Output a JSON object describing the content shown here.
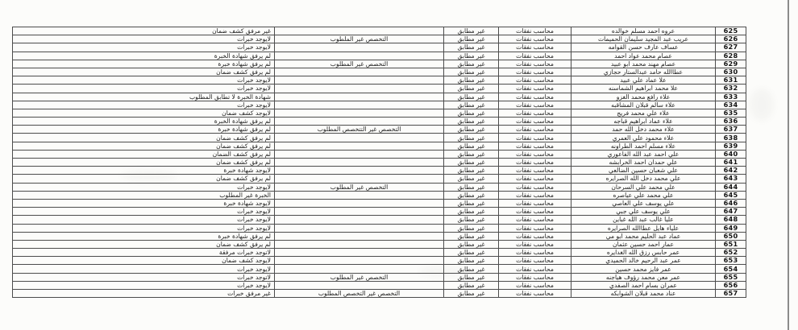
{
  "table": {
    "job_label": "محاسب نفقات",
    "match_label": "غير مطابق",
    "rows": [
      {
        "id": "625",
        "name": "عروه احمد مسلم خوالده",
        "job": "محاسب نفقات",
        "match": "غير مطابق",
        "spec": "",
        "reason": "غير مرفق كشف ضمان"
      },
      {
        "id": "626",
        "name": "عريب عبد المجيد سليمان الحميمات",
        "job": "محاسب نفقات",
        "match": "غير مطابق",
        "spec": "التخصص غير الملطوب",
        "reason": "لايوجد خبرات"
      },
      {
        "id": "627",
        "name": "عساف عارف حسن القوامه",
        "job": "محاسب نفقات",
        "match": "غير مطابق",
        "spec": "",
        "reason": "لايوجد خبرات"
      },
      {
        "id": "628",
        "name": "عصام محمد عواد احمد",
        "job": "محاسب نفقات",
        "match": "غير مطابق",
        "spec": "",
        "reason": "لم يرفق شهادة الخبرة"
      },
      {
        "id": "629",
        "name": "عصام مهند محمد ابو عبيد",
        "job": "محاسب نفقات",
        "match": "غير مطابق",
        "spec": "التخصص غير المطلوب",
        "reason": "لم يرفق شهادة خبرة"
      },
      {
        "id": "630",
        "name": "عطاالله حامد عبدالستار حجازي",
        "job": "محاسب نفقات",
        "match": "غير مطابق",
        "spec": "",
        "reason": "لم يرفق كشف ضمان"
      },
      {
        "id": "631",
        "name": "علا عماد علي عبيد",
        "job": "محاسب نفقات",
        "match": "غير مطابق",
        "spec": "",
        "reason": "لايوجد خبرات"
      },
      {
        "id": "632",
        "name": "علا محمد ابراهيم الشماسنه",
        "job": "محاسب نفقات",
        "match": "غير مطابق",
        "spec": "",
        "reason": "لايوجد خبرات"
      },
      {
        "id": "633",
        "name": "علاء رافع محمد الغزو",
        "job": "محاسب نفقات",
        "match": "غير مطابق",
        "spec": "",
        "reason": "شهادة الخبرة لا تطابق المطلوب"
      },
      {
        "id": "634",
        "name": "علاء سالم قبلان المشاقبه",
        "job": "محاسب نفقات",
        "match": "غير مطابق",
        "spec": "",
        "reason": "لايوجد خبرات"
      },
      {
        "id": "635",
        "name": "علاء علي محمد فريج",
        "job": "محاسب نفقات",
        "match": "غير مطابق",
        "spec": "",
        "reason": "لايوجد كشف ضمان"
      },
      {
        "id": "636",
        "name": "علاء عماد ابراهيم قباجه",
        "job": "محاسب نفقات",
        "match": "غير مطابق",
        "spec": "",
        "reason": "لم يرفق شهادة الخبرة"
      },
      {
        "id": "637",
        "name": "علاء محمد دخل الله حمد",
        "job": "محاسب نفقات",
        "match": "غير مطابق",
        "spec": "التخصص غير التتخصص المطلوب",
        "reason": "لم يرفق شهادة خبرة"
      },
      {
        "id": "638",
        "name": "علاء محمود علي العمري",
        "job": "محاسب نفقات",
        "match": "غير مطابق",
        "spec": "",
        "reason": "لم يرفق كشف ضمان"
      },
      {
        "id": "639",
        "name": "علاء مسلم احمد الطراونه",
        "job": "محاسب نفقات",
        "match": "غير مطابق",
        "spec": "",
        "reason": "لم يرفق كشف ضمان"
      },
      {
        "id": "640",
        "name": "علي احمد عبد الله الفاعوري",
        "job": "محاسب نفقات",
        "match": "غير مطابق",
        "spec": "",
        "reason": "لم يرفق كشف الضمان"
      },
      {
        "id": "641",
        "name": "علي حمدان احمد الخرابشه",
        "job": "محاسب نفقات",
        "match": "غير مطابق",
        "spec": "",
        "reason": "لم يرفق كشف ضمان"
      },
      {
        "id": "642",
        "name": "علي شعبان حسين الضالعي",
        "job": "محاسب نفقات",
        "match": "غير مطابق",
        "spec": "",
        "reason": "لايوجد شهادة خبرة"
      },
      {
        "id": "643",
        "name": "علي محمد دخل الله الصرايره",
        "job": "محاسب نفقات",
        "match": "غير مطابق",
        "spec": "",
        "reason": "لم يرفق كشف ضمان"
      },
      {
        "id": "644",
        "name": "علي محمد علي السرحان",
        "job": "محاسب نفقات",
        "match": "غير مطابق",
        "spec": "التخصص غير المطلوب",
        "reason": "لايوجد خبرات"
      },
      {
        "id": "645",
        "name": "علي محمد علي عياصره",
        "job": "محاسب نفقات",
        "match": "غير مطابق",
        "spec": "",
        "reason": "الخبرة غير المطلوب"
      },
      {
        "id": "646",
        "name": "علي يوسف علي العاصي",
        "job": "محاسب نفقات",
        "match": "غير مطابق",
        "spec": "",
        "reason": "لايوجد شهادة خبرة"
      },
      {
        "id": "647",
        "name": "علي يوسف علي جبي",
        "job": "محاسب نفقات",
        "match": "غير مطابق",
        "spec": "",
        "reason": "لايوجد خبرات"
      },
      {
        "id": "648",
        "name": "عليا غالب عبد الله غباين",
        "job": "محاسب نفقات",
        "match": "غير مطابق",
        "spec": "",
        "reason": "لايوجد خبرات"
      },
      {
        "id": "649",
        "name": "علياء هايل عطاالله الصرايره",
        "job": "محاسب نفقات",
        "match": "غير مطابق",
        "spec": "",
        "reason": "لايوجد خبرات"
      },
      {
        "id": "650",
        "name": "عماد عبد الحليم محمد ابو مي",
        "job": "محاسب نفقات",
        "match": "غير مطابق",
        "spec": "",
        "reason": "لم يرفق شهادة خبرة"
      },
      {
        "id": "651",
        "name": "عمار احمد حسين عثمان",
        "job": "محاسب نفقات",
        "match": "غير مطابق",
        "spec": "",
        "reason": "لم يرفق كشف ضمان"
      },
      {
        "id": "652",
        "name": "عمر حابس رزق الله الغدايره",
        "job": "محاسب نفقات",
        "match": "غير مطابق",
        "spec": "",
        "reason": "لاتوجد خبرات مرفقة"
      },
      {
        "id": "653",
        "name": "عمر عبد الرحيم خالد الحميدي",
        "job": "محاسب نفقات",
        "match": "غير مطابق",
        "spec": "",
        "reason": "لايوجد كشف ضمان"
      },
      {
        "id": "654",
        "name": "عمر فايز محمد حسين",
        "job": "محاسب نفقات",
        "match": "غير مطابق",
        "spec": "",
        "reason": "لايوجد خبرات"
      },
      {
        "id": "655",
        "name": "عمر معن محمد رؤوف هياجنه",
        "job": "محاسب نفقات",
        "match": "غير مطابق",
        "spec": "التخصص غير المطلوب",
        "reason": "لاتوجد خبرات"
      },
      {
        "id": "656",
        "name": "عمران بسام احمد الصفدي",
        "job": "محاسب نفقات",
        "match": "غير مطابق",
        "spec": "",
        "reason": "لايوجد خبرات"
      },
      {
        "id": "657",
        "name": "عناد محمد قبلان الشوابكه",
        "job": "محاسب نفقات",
        "match": "غير مطابق",
        "spec": "التخصص غير التخصص المطلوب",
        "reason": "غير مرفق خبرات"
      }
    ]
  }
}
